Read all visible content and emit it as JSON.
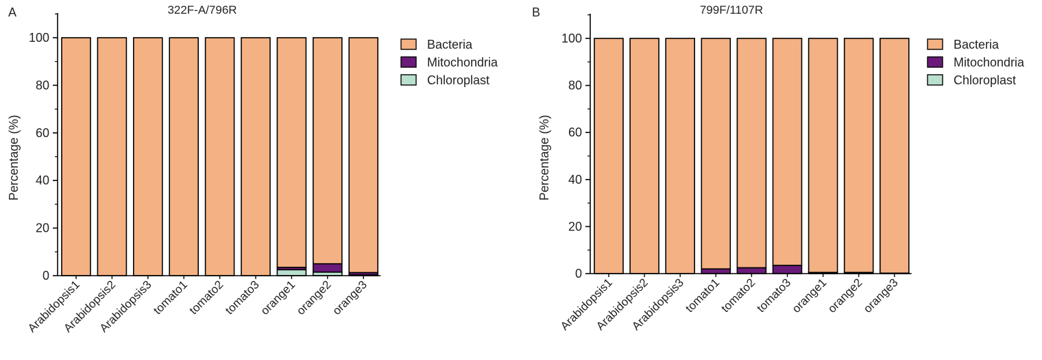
{
  "colors": {
    "bacteria": "#f4b183",
    "mitochondria": "#6a1b7a",
    "chloroplast": "#b9dfcf",
    "stroke": "#000000",
    "text": "#231f20"
  },
  "chart_data": [
    {
      "type": "bar",
      "stacked": true,
      "panel_label": "A",
      "title": "322F-A/796R",
      "xlabel": "",
      "ylabel": "Percentage (%)",
      "ylim": [
        0,
        100
      ],
      "yticks": [
        0,
        20,
        40,
        60,
        80,
        100
      ],
      "legend_position": "right",
      "categories": [
        "Arabidopsis1",
        "Arabidopsis2",
        "Arabidopsis3",
        "tomato1",
        "tomato2",
        "tomato3",
        "orange1",
        "orange2",
        "orange3"
      ],
      "series": [
        {
          "name": "Chloroplast",
          "color_key": "chloroplast",
          "values": [
            0,
            0,
            0,
            0,
            0,
            0,
            2.5,
            1.5,
            0.3
          ]
        },
        {
          "name": "Mitochondria",
          "color_key": "mitochondria",
          "values": [
            0,
            0,
            0,
            0,
            0,
            0,
            1.0,
            3.5,
            1.0
          ]
        },
        {
          "name": "Bacteria",
          "color_key": "bacteria",
          "values": [
            100,
            100,
            100,
            100,
            100,
            100,
            96.5,
            95.0,
            98.7
          ]
        }
      ],
      "legend_order": [
        "Bacteria",
        "Mitochondria",
        "Chloroplast"
      ]
    },
    {
      "type": "bar",
      "stacked": true,
      "panel_label": "B",
      "title": "799F/1107R",
      "xlabel": "",
      "ylabel": "Percentage (%)",
      "ylim": [
        0,
        100
      ],
      "yticks": [
        0,
        20,
        40,
        60,
        80,
        100
      ],
      "legend_position": "right",
      "categories": [
        "Arabidopsis1",
        "Arabidopsis2",
        "Arabidopsis3",
        "tomato1",
        "tomato2",
        "tomato3",
        "orange1",
        "orange2",
        "orange3"
      ],
      "series": [
        {
          "name": "Chloroplast",
          "color_key": "chloroplast",
          "values": [
            0,
            0,
            0,
            0,
            0,
            0,
            0,
            0,
            0
          ]
        },
        {
          "name": "Mitochondria",
          "color_key": "mitochondria",
          "values": [
            0,
            0,
            0,
            2.0,
            2.5,
            3.5,
            0.5,
            0.5,
            0.2
          ]
        },
        {
          "name": "Bacteria",
          "color_key": "bacteria",
          "values": [
            100,
            100,
            100,
            98.0,
            97.5,
            96.5,
            99.5,
            99.5,
            99.8
          ]
        }
      ],
      "legend_order": [
        "Bacteria",
        "Mitochondria",
        "Chloroplast"
      ]
    }
  ]
}
